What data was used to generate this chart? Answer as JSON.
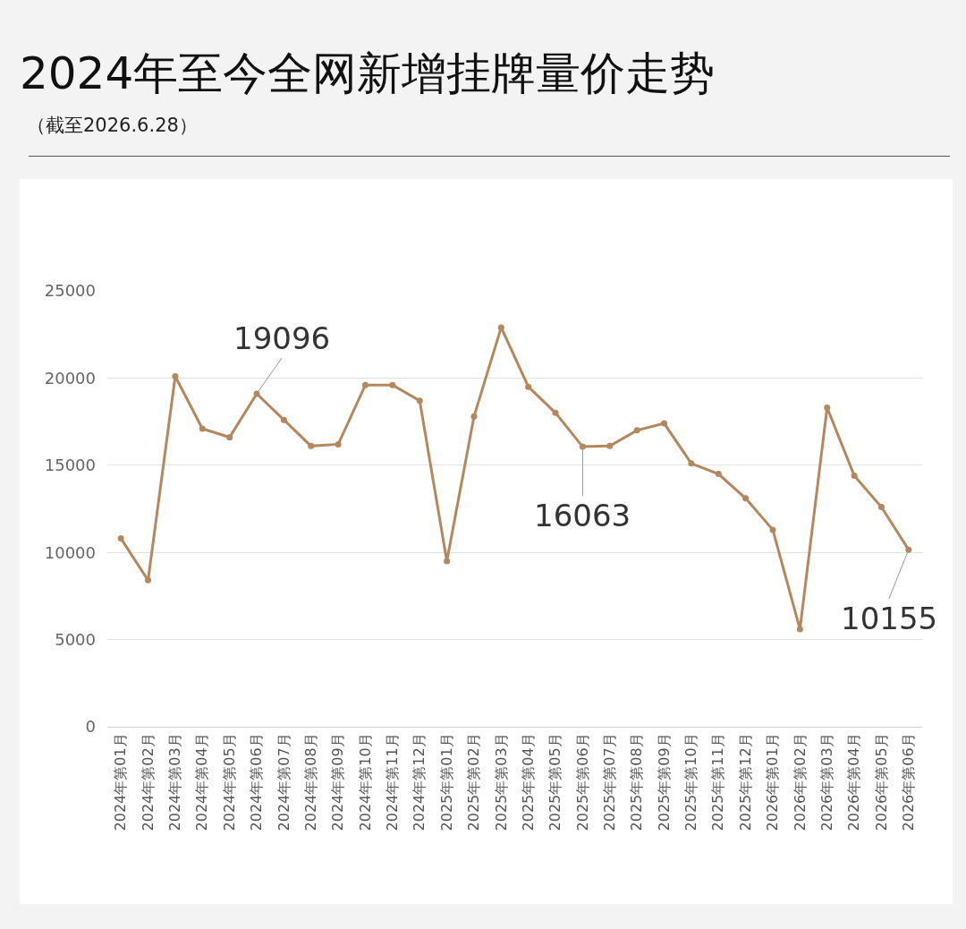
{
  "chart_data": {
    "type": "line",
    "title": "2024年至今全网新增挂牌量价走势",
    "subtitle": "（截至2026.6.28）",
    "categories": [
      "2024年第01月",
      "2024年第02月",
      "2024年第03月",
      "2024年第04月",
      "2024年第05月",
      "2024年第06月",
      "2024年第07月",
      "2024年第08月",
      "2024年第09月",
      "2024年第10月",
      "2024年第11月",
      "2024年第12月",
      "2025年第01月",
      "2025年第02月",
      "2025年第03月",
      "2025年第04月",
      "2025年第05月",
      "2025年第06月",
      "2025年第07月",
      "2025年第08月",
      "2025年第09月",
      "2025年第10月",
      "2025年第11月",
      "2025年第12月",
      "2026年第01月",
      "2026年第02月",
      "2026年第03月",
      "2026年第04月",
      "2026年第05月",
      "2026年第06月"
    ],
    "series": [
      {
        "color": "#b5875c",
        "values": [
          10800,
          8400,
          20100,
          17100,
          16600,
          19096,
          17600,
          16100,
          16200,
          19600,
          19600,
          18700,
          9500,
          17800,
          22900,
          19500,
          18000,
          16063,
          16100,
          17000,
          17400,
          15100,
          14500,
          13100,
          11300,
          5600,
          18300,
          14400,
          12600,
          10155
        ],
        "value_labels": [
          null,
          null,
          null,
          null,
          null,
          "19096",
          null,
          null,
          null,
          null,
          null,
          null,
          null,
          null,
          null,
          null,
          null,
          "16063",
          null,
          null,
          null,
          null,
          null,
          null,
          null,
          null,
          null,
          null,
          null,
          "10155"
        ]
      }
    ],
    "ylim": [
      0,
      25000
    ],
    "yticks": [
      0,
      5000,
      10000,
      15000,
      20000,
      25000
    ],
    "grid": "y",
    "marker": "circle",
    "line_style": "solid"
  }
}
